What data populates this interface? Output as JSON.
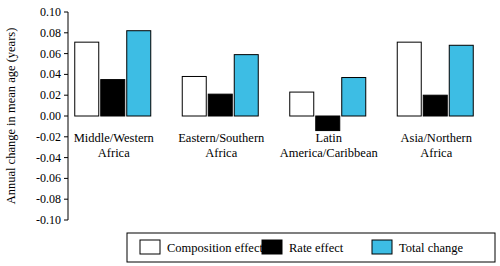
{
  "chart_data": {
    "type": "bar",
    "y_label": "Annual change in mean age (years)",
    "categories": [
      "Middle/Western\nAfrica",
      "Eastern/Southern\nAfrica",
      "Latin\nAmerica/Caribbean",
      "Asia/Northern\nAfrica"
    ],
    "series": [
      {
        "name": "Composition effect",
        "color": "#ffffff",
        "values": [
          0.071,
          0.038,
          0.023,
          0.071
        ]
      },
      {
        "name": "Rate effect",
        "color": "#000000",
        "values": [
          0.035,
          0.021,
          -0.014,
          0.02
        ]
      },
      {
        "name": "Total change",
        "color": "#3dbde4",
        "values": [
          0.082,
          0.059,
          0.037,
          0.068
        ]
      }
    ],
    "ylim": [
      -0.1,
      0.1
    ],
    "yticks": [
      {
        "value": -0.1,
        "label": "-0.10"
      },
      {
        "value": -0.08,
        "label": "-0.08"
      },
      {
        "value": -0.06,
        "label": "-0.06"
      },
      {
        "value": -0.04,
        "label": "-0.04"
      },
      {
        "value": -0.02,
        "label": "-0.02"
      },
      {
        "value": 0,
        "label": "0.00"
      },
      {
        "value": 0.02,
        "label": "0.02"
      },
      {
        "value": 0.04,
        "label": "0.04"
      },
      {
        "value": 0.06,
        "label": "0.06"
      },
      {
        "value": 0.08,
        "label": "0.08"
      },
      {
        "value": 0.1,
        "label": "0.10"
      }
    ],
    "grid": false,
    "legend": "bottom"
  }
}
